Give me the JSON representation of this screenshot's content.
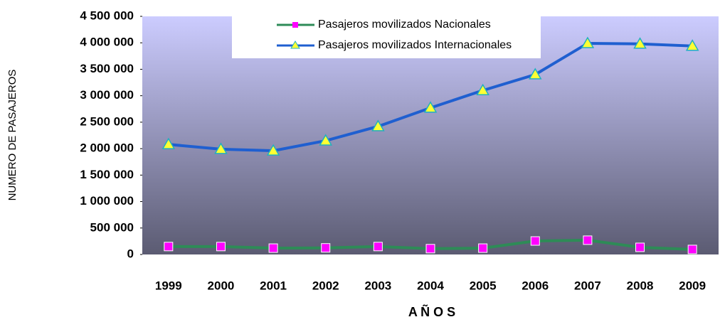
{
  "chart_data": {
    "type": "line",
    "y_axis_label": "NUMERO DE PASAJEROS",
    "x_axis_label": "A Ñ O S",
    "categories": [
      "1999",
      "2000",
      "2001",
      "2002",
      "2003",
      "2004",
      "2005",
      "2006",
      "2007",
      "2008",
      "2009"
    ],
    "series": [
      {
        "name": "Pasajeros movilizados Nacionales",
        "color": "#2e8b57",
        "marker_color": "#ff00ff",
        "marker": "square",
        "values": [
          150000,
          150000,
          120000,
          125000,
          150000,
          110000,
          120000,
          255000,
          270000,
          135000,
          95000
        ]
      },
      {
        "name": "Pasajeros movilizados Internacionales",
        "color": "#1f5fd0",
        "marker_color": "#ffff33",
        "marker": "triangle",
        "values": [
          2080000,
          1990000,
          1960000,
          2150000,
          2420000,
          2770000,
          3100000,
          3400000,
          3990000,
          3980000,
          3940000
        ]
      }
    ],
    "ylim": [
      0,
      4500000
    ],
    "yticks": [
      0,
      {
        "value": 500000,
        "label": "500 000"
      },
      {
        "value": 1000000,
        "label": "1 000 000"
      },
      {
        "value": 1500000,
        "label": "1 500 000"
      },
      {
        "value": 2000000,
        "label": "2 000 000"
      },
      {
        "value": 2500000,
        "label": "2 500 000"
      },
      {
        "value": 3000000,
        "label": "3 000 000"
      },
      {
        "value": 3500000,
        "label": "3 500 000"
      },
      {
        "value": 4000000,
        "label": "4 000 000"
      },
      {
        "value": 4500000,
        "label": "4 500 000"
      }
    ],
    "legend": "top"
  }
}
